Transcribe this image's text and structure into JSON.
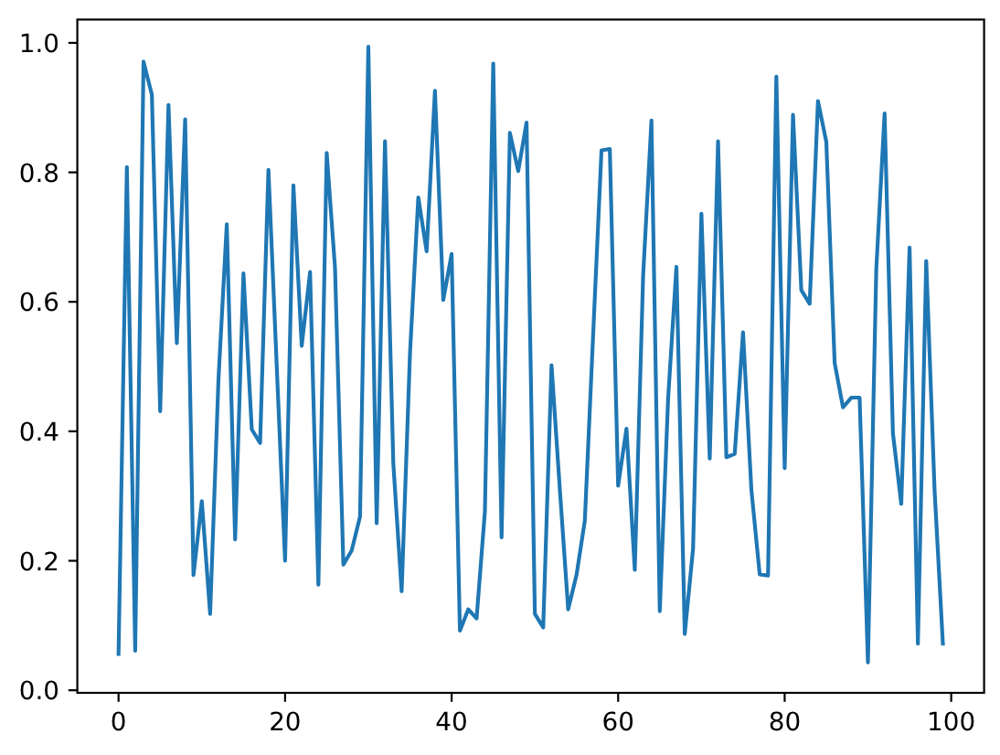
{
  "chart_data": {
    "type": "line",
    "x": [
      0,
      1,
      2,
      3,
      4,
      5,
      6,
      7,
      8,
      9,
      10,
      11,
      12,
      13,
      14,
      15,
      16,
      17,
      18,
      19,
      20,
      21,
      22,
      23,
      24,
      25,
      26,
      27,
      28,
      29,
      30,
      31,
      32,
      33,
      34,
      35,
      36,
      37,
      38,
      39,
      40,
      41,
      42,
      43,
      44,
      45,
      46,
      47,
      48,
      49,
      50,
      51,
      52,
      53,
      54,
      55,
      56,
      57,
      58,
      59,
      60,
      61,
      62,
      63,
      64,
      65,
      66,
      67,
      68,
      69,
      70,
      71,
      72,
      73,
      74,
      75,
      76,
      77,
      78,
      79,
      80,
      81,
      82,
      83,
      84,
      85,
      86,
      87,
      88,
      89,
      90,
      91,
      92,
      93,
      94,
      95,
      96,
      97,
      98,
      99
    ],
    "values": [
      0.056,
      0.808,
      0.061,
      0.971,
      0.92,
      0.431,
      0.904,
      0.536,
      0.882,
      0.178,
      0.292,
      0.118,
      0.48,
      0.72,
      0.233,
      0.644,
      0.403,
      0.382,
      0.804,
      0.5,
      0.2,
      0.78,
      0.532,
      0.646,
      0.163,
      0.83,
      0.652,
      0.194,
      0.216,
      0.268,
      0.994,
      0.258,
      0.848,
      0.35,
      0.153,
      0.52,
      0.761,
      0.678,
      0.926,
      0.603,
      0.674,
      0.092,
      0.125,
      0.111,
      0.276,
      0.968,
      0.236,
      0.861,
      0.802,
      0.877,
      0.118,
      0.097,
      0.502,
      0.31,
      0.125,
      0.178,
      0.262,
      0.55,
      0.834,
      0.836,
      0.316,
      0.404,
      0.186,
      0.64,
      0.88,
      0.122,
      0.45,
      0.654,
      0.087,
      0.219,
      0.736,
      0.358,
      0.848,
      0.36,
      0.365,
      0.553,
      0.31,
      0.179,
      0.177,
      0.948,
      0.343,
      0.889,
      0.618,
      0.597,
      0.91,
      0.847,
      0.506,
      0.437,
      0.452,
      0.452,
      0.043,
      0.65,
      0.891,
      0.397,
      0.288,
      0.684,
      0.072,
      0.663,
      0.31,
      0.072
    ],
    "color": "#1f77b4",
    "xlim": [
      -4.95,
      103.95
    ],
    "xticks": [
      0,
      20,
      40,
      60,
      80,
      100
    ],
    "ylim": [
      -0.004,
      1.036
    ],
    "yticks": [
      {
        "value": 0,
        "label": "0.0"
      },
      0.2,
      0.4,
      0.6,
      0.8,
      {
        "value": 1,
        "label": "1.0"
      }
    ]
  }
}
